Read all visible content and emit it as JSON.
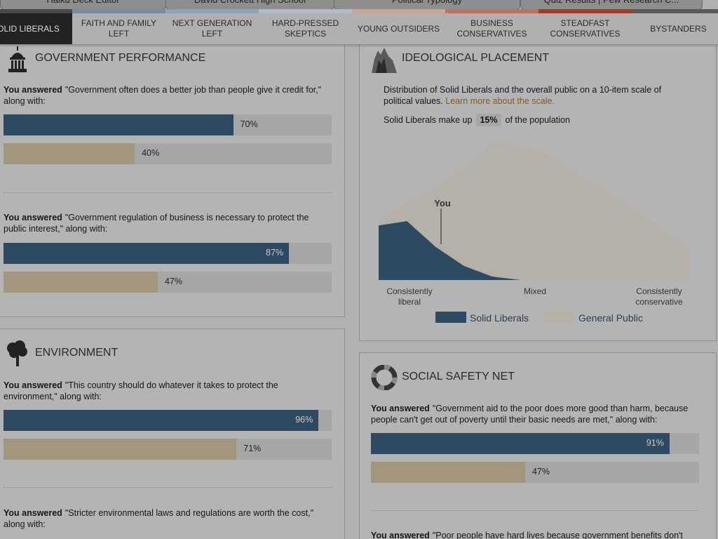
{
  "browser_tabs": [
    "Haiku Deck Editor",
    "David Crockett High School",
    "Political Typology",
    "Quiz Results | Pew Research C..."
  ],
  "nav": {
    "tabs": [
      "SOLID LIBERALS",
      "FAITH AND FAMILY LEFT",
      "NEXT GENERATION LEFT",
      "HARD-PRESSED SKEPTICS",
      "YOUNG OUTSIDERS",
      "BUSINESS CONSERVATIVES",
      "STEADFAST CONSERVATIVES",
      "BYSTANDERS"
    ],
    "active": 0,
    "strip_colors": [
      "#4a4a4a",
      "#7b8ba0",
      "#8fa3b8",
      "#b3bcc6",
      "#c9a697",
      "#c07262",
      "#a33a2a",
      "#5a5a5a"
    ]
  },
  "bar_colors": [
    "#2e4962",
    "#a2977e"
  ],
  "sections": [
    {
      "title": "GOVERNMENT PERFORMANCE",
      "questions": [
        {
          "lead": "You answered",
          "text": "\"Government often does a better job than people give it credit for,\" along with:",
          "values": [
            70,
            40
          ],
          "value_labels": [
            "70%",
            "40%"
          ]
        },
        {
          "lead": "You answered",
          "text": "\"Government regulation of business is necessary to protect the public interest,\" along with:",
          "values": [
            87,
            47
          ],
          "value_labels": [
            "87%",
            "47%"
          ]
        }
      ]
    },
    {
      "title": "ENVIRONMENT",
      "questions": [
        {
          "lead": "You answered",
          "text": "\"This country should do whatever it takes to protect the environment,\" along with:",
          "values": [
            96,
            71
          ],
          "value_labels": [
            "96%",
            "71%"
          ]
        },
        {
          "lead": "You answered",
          "text": "\"Stricter environmental laws and regulations are worth the cost,\" along with:"
        }
      ]
    },
    {
      "title": "SOCIAL SAFETY NET",
      "questions": [
        {
          "lead": "You answered",
          "text": "\"Government aid to the poor does more good than harm, because people can't get out of poverty until their basic needs are met,\" along with:",
          "values": [
            91,
            47
          ],
          "value_labels": [
            "91%",
            "47%"
          ]
        },
        {
          "lead": "You answered",
          "text": "\"Poor people have hard lives because government benefits don't"
        }
      ]
    }
  ],
  "ideology": {
    "title": "IDEOLOGICAL PLACEMENT",
    "description": "Distribution of Solid Liberals and the overall public on a 10-item scale of political values.",
    "link": "Learn more about the scale.",
    "share_prefix": "Solid Liberals make up",
    "share": "15%",
    "share_suffix": "of the population",
    "chart": {
      "type": "area",
      "annotation": "You",
      "x_labels": [
        "Consistently liberal",
        "Mixed",
        "Consistently conservative"
      ],
      "series": [
        {
          "name": "Solid Liberals",
          "color": "#2e4962",
          "values": [
            77,
            83,
            47,
            20,
            5,
            0,
            0,
            0,
            0,
            0,
            0,
            0
          ]
        },
        {
          "name": "General Public",
          "color": "#b5b1a8",
          "values": [
            87,
            109,
            130,
            160,
            195,
            190,
            178,
            150,
            128,
            100,
            72,
            44
          ]
        }
      ]
    }
  }
}
